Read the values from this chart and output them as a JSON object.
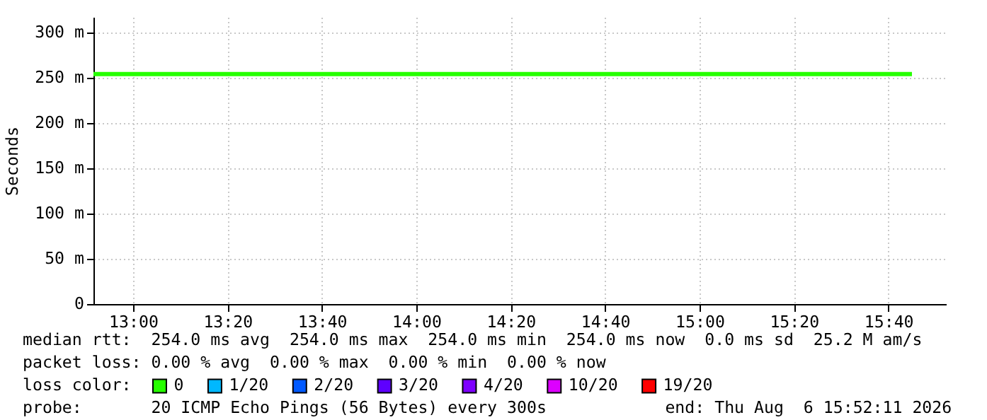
{
  "chart_data": {
    "type": "line",
    "ylabel": "Seconds",
    "x": [
      12.86,
      15.75
    ],
    "series": [
      {
        "name": "0",
        "color": "#26ff00",
        "values": [
          254,
          254
        ]
      },
      {
        "name": "1/20",
        "color": "#00b8ff",
        "values": [
          null,
          null
        ]
      },
      {
        "name": "2/20",
        "color": "#0059ff",
        "values": [
          null,
          null
        ]
      },
      {
        "name": "3/20",
        "color": "#5e00ff",
        "values": [
          null,
          null
        ]
      },
      {
        "name": "4/20",
        "color": "#7e00ff",
        "values": [
          null,
          null
        ]
      },
      {
        "name": "10/20",
        "color": "#dd00ff",
        "values": [
          null,
          null
        ]
      },
      {
        "name": "19/20",
        "color": "#ff0000",
        "values": [
          null,
          null
        ]
      }
    ],
    "legend_title": "loss color:",
    "legend": "bottom left",
    "xlim": [
      12.86,
      15.87
    ],
    "xticks": [
      {
        "value": 13,
        "label": "13:00"
      },
      {
        "value": 13.3333,
        "label": "13:20"
      },
      {
        "value": 13.6667,
        "label": "13:40"
      },
      {
        "value": 14,
        "label": "14:00"
      },
      {
        "value": 14.3333,
        "label": "14:20"
      },
      {
        "value": 14.6667,
        "label": "14:40"
      },
      {
        "value": 15,
        "label": "15:00"
      },
      {
        "value": 15.3333,
        "label": "15:20"
      },
      {
        "value": 15.6667,
        "label": "15:40"
      }
    ],
    "ylim": [
      0,
      317
    ],
    "yticks": [
      0,
      {
        "value": 50,
        "label": "50 m"
      },
      {
        "value": 100,
        "label": "100 m"
      },
      {
        "value": 150,
        "label": "150 m"
      },
      {
        "value": 200,
        "label": "200 m"
      },
      {
        "value": 250,
        "label": "250 m"
      },
      {
        "value": 300,
        "label": "300 m"
      }
    ],
    "grid": true,
    "marker": "none",
    "line_style": "solid",
    "annotations": [
      "median rtt:  254.0 ms avg  254.0 ms max  254.0 ms min  254.0 ms now  0.0 ms sd  25.2 M am/s",
      "packet loss: 0.00 % avg  0.00 % max  0.00 % min  0.00 % now",
      "probe:       20 ICMP Echo Pings (56 Bytes) every 300s            end: Thu Aug  6 15:52:11 2026"
    ]
  }
}
